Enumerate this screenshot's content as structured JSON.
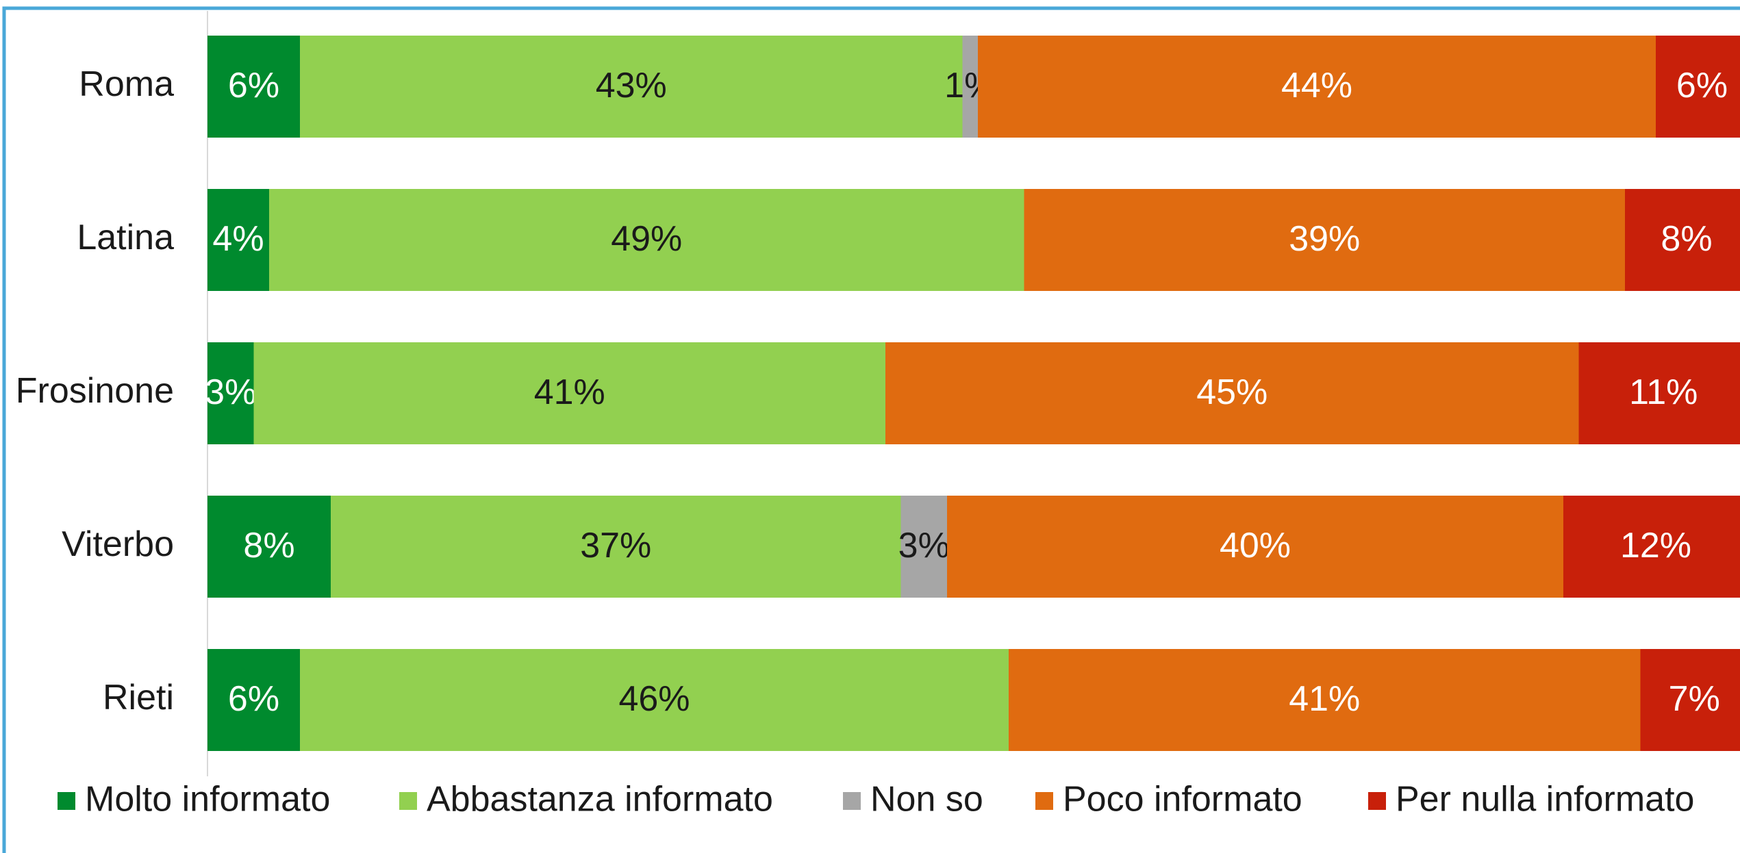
{
  "chart_data": {
    "type": "stacked-bar-horizontal",
    "categories": [
      "Roma",
      "Latina",
      "Frosinone",
      "Viterbo",
      "Rieti"
    ],
    "series": [
      {
        "name": "Molto informato",
        "color": "#008a2e",
        "values": [
          6,
          4,
          3,
          8,
          6
        ],
        "value_labels": [
          "6%",
          "4%",
          "3%",
          "8%",
          "6%"
        ]
      },
      {
        "name": "Abbastanza informato",
        "color": "#92d050",
        "values": [
          43,
          49,
          41,
          37,
          46
        ],
        "value_labels": [
          "43%",
          "49%",
          "41%",
          "37%",
          "46%"
        ]
      },
      {
        "name": "Non so",
        "color": "#a6a6a6",
        "values": [
          1,
          null,
          null,
          3,
          null
        ],
        "value_labels": [
          "1%",
          null,
          null,
          "3%",
          null
        ]
      },
      {
        "name": "Poco informato",
        "color": "#e06b10",
        "values": [
          44,
          39,
          45,
          40,
          41
        ],
        "value_labels": [
          "44%",
          "39%",
          "45%",
          "40%",
          "41%"
        ]
      },
      {
        "name": "Per nulla informato",
        "color": "#c8200a",
        "values": [
          6,
          8,
          11,
          12,
          7
        ],
        "value_labels": [
          "6%",
          "8%",
          "11%",
          "12%",
          "7%"
        ]
      }
    ],
    "legend": "bottom"
  }
}
